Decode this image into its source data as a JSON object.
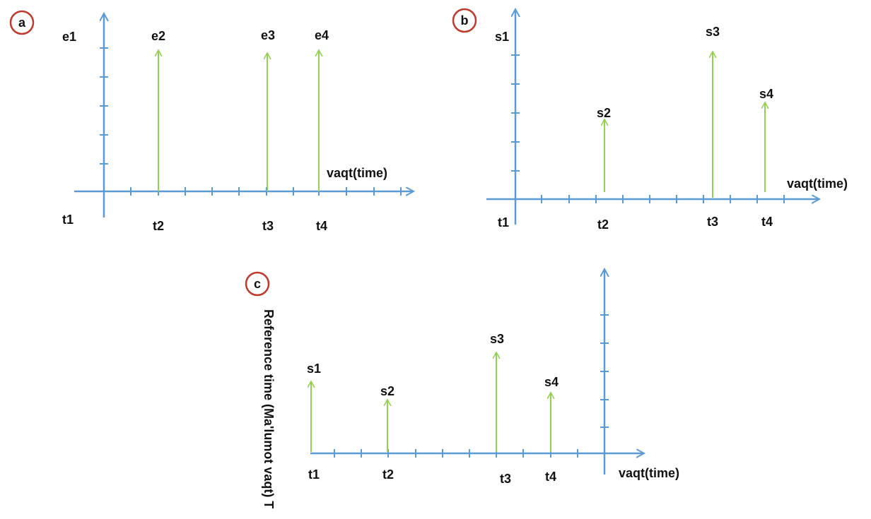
{
  "colors": {
    "axis": "#5b9bd5",
    "arrow": "#92d050",
    "badge": "#c0392b",
    "text": "#111111"
  },
  "panel_a": {
    "badge": "a",
    "y_label": "e1",
    "x_label": "vaqt(time)",
    "origin_label": "t1",
    "events": [
      {
        "label": "e2",
        "time": "t2"
      },
      {
        "label": "e3",
        "time": "t3"
      },
      {
        "label": "e4",
        "time": "t4"
      }
    ]
  },
  "panel_b": {
    "badge": "b",
    "y_label": "s1",
    "x_label": "vaqt(time)",
    "origin_label": "t1",
    "events": [
      {
        "label": "s2",
        "time": "t2"
      },
      {
        "label": "s3",
        "time": "t3"
      },
      {
        "label": "s4",
        "time": "t4"
      }
    ]
  },
  "panel_c": {
    "badge": "c",
    "y_label": "Reference time (Ma'lumot vaqt) T",
    "x_label": "vaqt(time)",
    "events": [
      {
        "label": "s1",
        "time": "t1"
      },
      {
        "label": "s2",
        "time": "t2"
      },
      {
        "label": "s3",
        "time": "t3"
      },
      {
        "label": "s4",
        "time": "t4"
      }
    ]
  }
}
